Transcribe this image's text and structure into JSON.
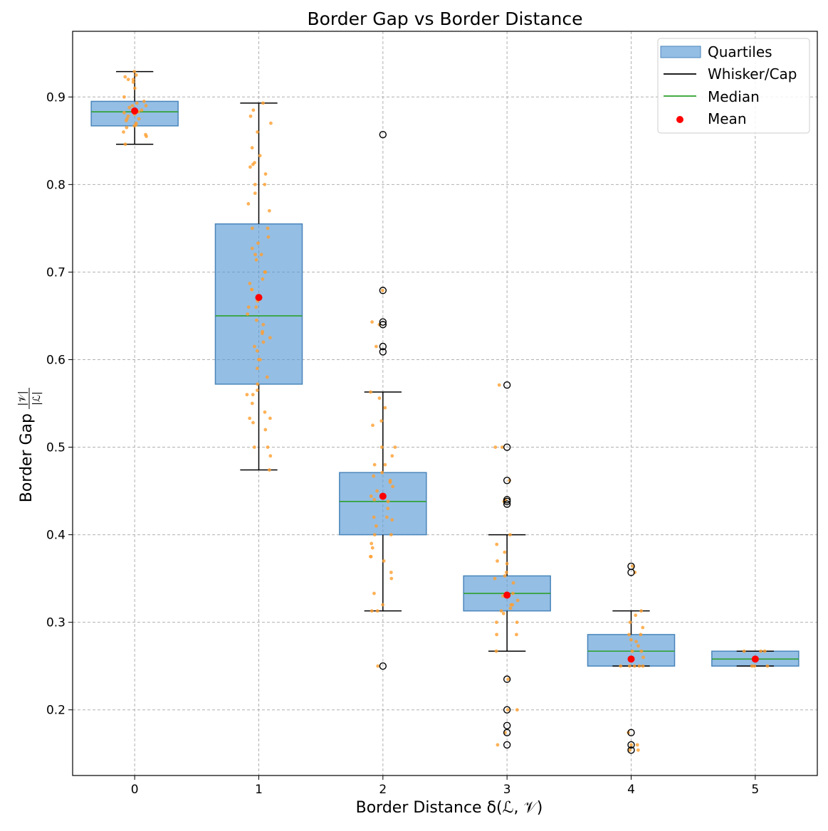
{
  "chart_data": {
    "type": "box",
    "title": "Border Gap vs Border Distance",
    "xlabel": "Border Distance δ(ℒ, 𝒱)",
    "ylabel_prefix": "Border Gap",
    "ylabel_num": "|𝒱|",
    "ylabel_den": "|ℒ|",
    "ylim": [
      0.125,
      0.975
    ],
    "yticks": [
      0.2,
      0.3,
      0.4,
      0.5,
      0.6,
      0.7,
      0.8,
      0.9
    ],
    "xlim": [
      -0.5,
      5.5
    ],
    "grid": true,
    "legend_position": "top-right",
    "legend": [
      {
        "label": "Quartiles",
        "kind": "patch"
      },
      {
        "label": "Whisker/Cap",
        "kind": "line-black"
      },
      {
        "label": "Median",
        "kind": "line-green"
      },
      {
        "label": "Mean",
        "kind": "dot"
      }
    ],
    "colors": {
      "box_fill": "#5b9bd5",
      "box_edge": "#4a86bb",
      "median": "#2ca02c",
      "mean": "#ff0000",
      "whisker": "#000000",
      "points": "#ff9f2e"
    },
    "groups": [
      {
        "x": 0,
        "label": "0",
        "q1": 0.867,
        "median": 0.883,
        "q3": 0.895,
        "whisker_low": 0.846,
        "whisker_high": 0.929,
        "mean": 0.884,
        "outliers": [],
        "points": [
          0.929,
          0.925,
          0.923,
          0.92,
          0.917,
          0.91,
          0.9,
          0.895,
          0.893,
          0.89,
          0.888,
          0.885,
          0.883,
          0.882,
          0.88,
          0.878,
          0.875,
          0.873,
          0.87,
          0.867,
          0.865,
          0.86,
          0.857,
          0.855,
          0.846,
          0.92,
          0.89,
          0.875,
          0.885,
          0.868
        ]
      },
      {
        "x": 1,
        "label": "1",
        "q1": 0.572,
        "median": 0.65,
        "q3": 0.755,
        "whisker_low": 0.474,
        "whisker_high": 0.893,
        "mean": 0.671,
        "outliers": [],
        "points": [
          0.893,
          0.885,
          0.878,
          0.87,
          0.86,
          0.842,
          0.833,
          0.825,
          0.82,
          0.812,
          0.8,
          0.79,
          0.778,
          0.77,
          0.75,
          0.74,
          0.733,
          0.727,
          0.72,
          0.714,
          0.7,
          0.692,
          0.687,
          0.68,
          0.667,
          0.66,
          0.652,
          0.645,
          0.64,
          0.632,
          0.625,
          0.615,
          0.61,
          0.6,
          0.59,
          0.58,
          0.572,
          0.565,
          0.56,
          0.55,
          0.54,
          0.533,
          0.528,
          0.52,
          0.5,
          0.49,
          0.474,
          0.75,
          0.7,
          0.63,
          0.6,
          0.56,
          0.5,
          0.72,
          0.68,
          0.66,
          0.62,
          0.8,
          0.823,
          0.533
        ]
      },
      {
        "x": 2,
        "label": "2",
        "q1": 0.4,
        "median": 0.438,
        "q3": 0.471,
        "whisker_low": 0.313,
        "whisker_high": 0.563,
        "mean": 0.444,
        "outliers": [
          0.857,
          0.679,
          0.643,
          0.64,
          0.615,
          0.609,
          0.25
        ],
        "points": [
          0.563,
          0.556,
          0.545,
          0.53,
          0.525,
          0.5,
          0.5,
          0.49,
          0.48,
          0.471,
          0.467,
          0.462,
          0.455,
          0.45,
          0.444,
          0.44,
          0.438,
          0.43,
          0.42,
          0.417,
          0.41,
          0.4,
          0.4,
          0.39,
          0.385,
          0.375,
          0.37,
          0.357,
          0.35,
          0.333,
          0.32,
          0.313,
          0.313,
          0.679,
          0.643,
          0.64,
          0.615,
          0.25,
          0.46,
          0.42,
          0.48,
          0.375
        ]
      },
      {
        "x": 3,
        "label": "3",
        "q1": 0.313,
        "median": 0.333,
        "q3": 0.353,
        "whisker_low": 0.267,
        "whisker_high": 0.4,
        "mean": 0.331,
        "outliers": [
          0.571,
          0.5,
          0.462,
          0.44,
          0.438,
          0.435,
          0.235,
          0.2,
          0.182,
          0.174,
          0.16
        ],
        "points": [
          0.4,
          0.389,
          0.38,
          0.37,
          0.357,
          0.353,
          0.35,
          0.345,
          0.333,
          0.333,
          0.33,
          0.325,
          0.32,
          0.316,
          0.313,
          0.31,
          0.3,
          0.286,
          0.286,
          0.267,
          0.571,
          0.5,
          0.5,
          0.462,
          0.44,
          0.438,
          0.235,
          0.2,
          0.2,
          0.174,
          0.16,
          0.3,
          0.32,
          0.367
        ]
      },
      {
        "x": 4,
        "label": "4",
        "q1": 0.25,
        "median": 0.267,
        "q3": 0.286,
        "whisker_low": 0.25,
        "whisker_high": 0.313,
        "mean": 0.258,
        "outliers": [
          0.364,
          0.357,
          0.174,
          0.16,
          0.154
        ],
        "points": [
          0.313,
          0.308,
          0.3,
          0.294,
          0.286,
          0.286,
          0.28,
          0.278,
          0.273,
          0.267,
          0.267,
          0.26,
          0.25,
          0.25,
          0.25,
          0.25,
          0.25,
          0.364,
          0.357,
          0.174,
          0.16,
          0.154,
          0.16,
          0.154
        ]
      },
      {
        "x": 5,
        "label": "5",
        "q1": 0.25,
        "median": 0.258,
        "q3": 0.267,
        "whisker_low": 0.25,
        "whisker_high": 0.267,
        "mean": 0.258,
        "outliers": [],
        "points": [
          0.267,
          0.267,
          0.267,
          0.25,
          0.25,
          0.25
        ]
      }
    ]
  }
}
